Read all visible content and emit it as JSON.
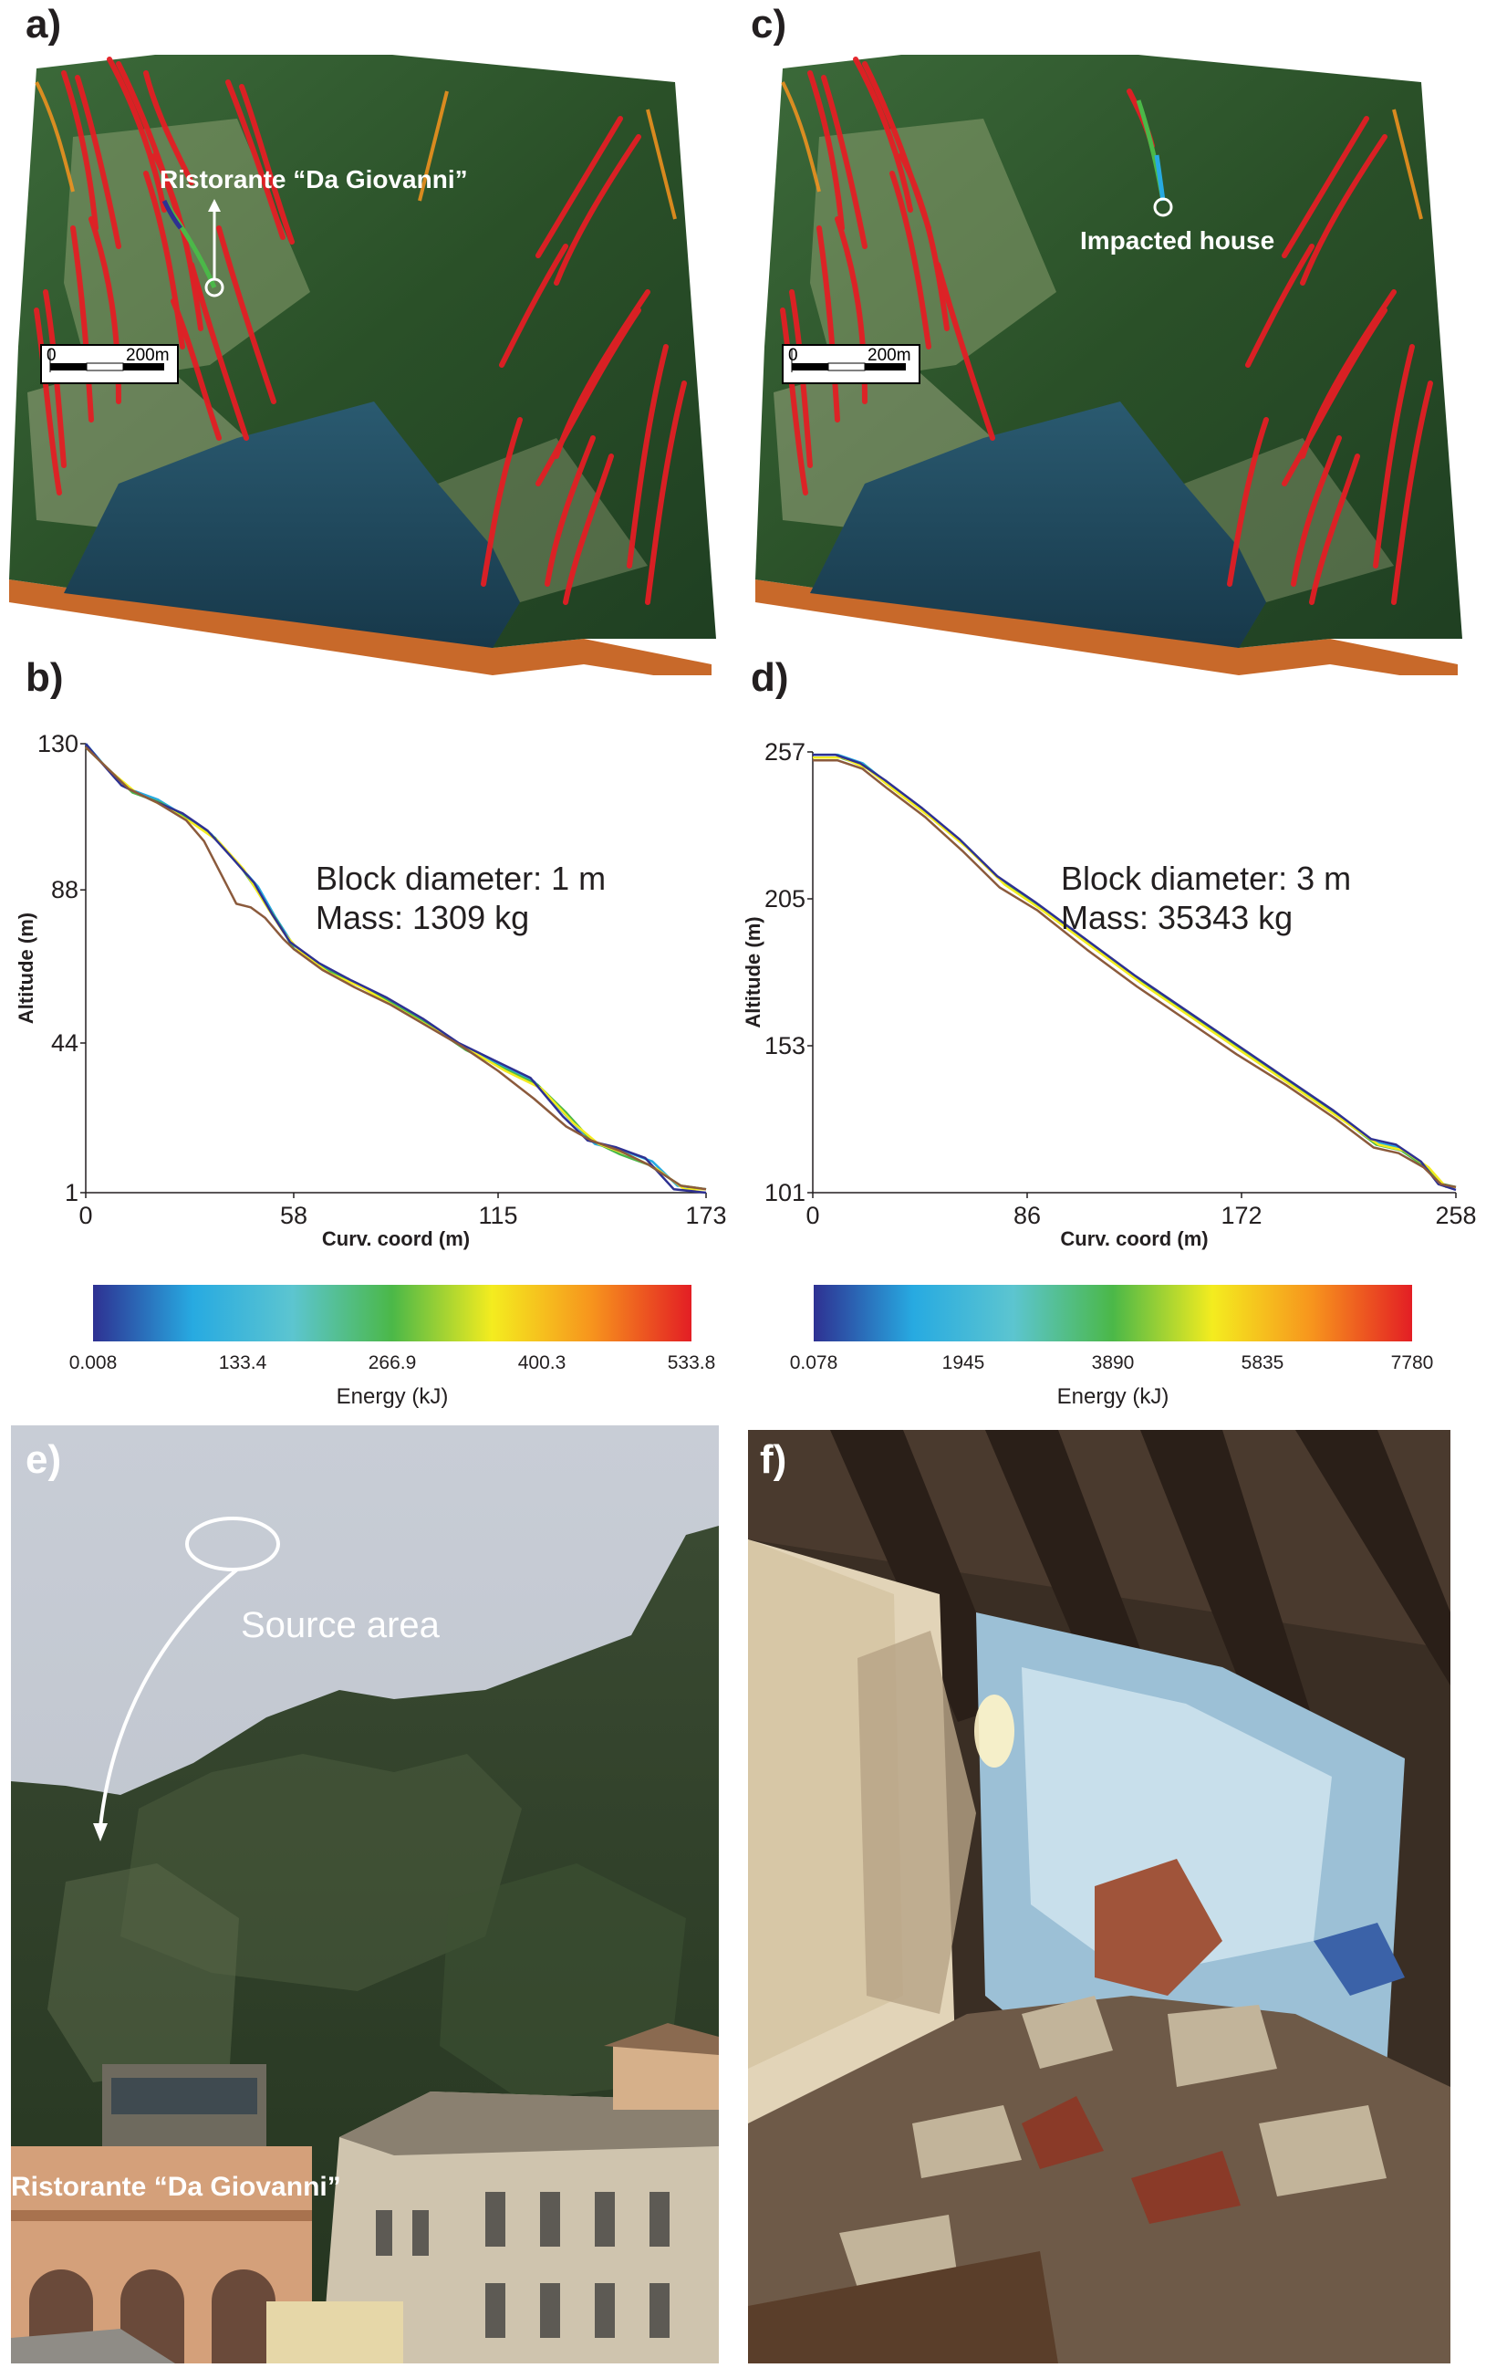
{
  "panels": {
    "a": {
      "letter": "a)",
      "label": "Ristorante “Da Giovanni”",
      "scale": {
        "zero": "0",
        "dist": "200m"
      }
    },
    "c": {
      "letter": "c)",
      "label": "Impacted house",
      "scale": {
        "zero": "0",
        "dist": "200m"
      }
    },
    "b": {
      "letter": "b)",
      "annotation_line1": "Block diameter: 1 m",
      "annotation_line2": "Mass: 1309 kg"
    },
    "d": {
      "letter": "d)",
      "annotation_line1": "Block diameter: 3 m",
      "annotation_line2": "Mass: 35343 kg"
    },
    "e": {
      "letter": "e)",
      "source_label": "Source area",
      "restaurant_label": "Ristorante “Da Giovanni”"
    },
    "f": {
      "letter": "f)"
    }
  },
  "colors": {
    "trajectory_red": "#e31e24",
    "water": "#1f4f66",
    "forest": "#2f5a2a",
    "soil_base": "#c8692a",
    "gradient": [
      "#2e3192",
      "#27aae1",
      "#5cc5d0",
      "#4bb848",
      "#f4ec1f",
      "#f7941d",
      "#e31e24"
    ]
  },
  "chart_data": [
    {
      "id": "b",
      "type": "line",
      "title": "",
      "xlabel": "Curv. coord (m)",
      "ylabel": "Altitude (m)",
      "xlim": [
        0,
        173
      ],
      "ylim": [
        1,
        130
      ],
      "xticks": [
        0,
        58,
        115,
        173
      ],
      "yticks": [
        1,
        44,
        88,
        130
      ],
      "series": [
        {
          "color": "#27aae1",
          "x": [
            0,
            5,
            12,
            20,
            28,
            35,
            42,
            48,
            53,
            58,
            66,
            75,
            85,
            95,
            105,
            115,
            125,
            135,
            142,
            150,
            158,
            165,
            173
          ],
          "y": [
            130,
            124,
            117,
            114,
            109,
            104,
            96,
            89,
            80,
            72,
            66,
            61,
            56,
            50,
            43,
            38,
            33,
            22,
            15,
            13,
            10,
            3,
            2
          ]
        },
        {
          "color": "#4bb848",
          "x": [
            0,
            6,
            13,
            21,
            29,
            36,
            43,
            49,
            54,
            58,
            67,
            76,
            86,
            96,
            106,
            116,
            126,
            134,
            141,
            149,
            157,
            166,
            173
          ],
          "y": [
            129,
            123,
            116,
            113,
            108,
            103,
            95,
            86,
            78,
            71,
            65,
            61,
            55,
            49,
            42,
            37,
            32,
            24,
            16,
            12,
            9,
            3,
            2
          ]
        },
        {
          "color": "#f4ec1f",
          "x": [
            0,
            7,
            14,
            22,
            30,
            37,
            44,
            50,
            55,
            60,
            68,
            77,
            87,
            97,
            107,
            117,
            127,
            136,
            143,
            151,
            159,
            167,
            173
          ],
          "y": [
            129,
            122,
            116,
            112,
            107,
            102,
            94,
            84,
            76,
            70,
            64,
            60,
            54,
            48,
            42,
            36,
            31,
            21,
            15,
            12,
            8,
            2,
            2
          ]
        },
        {
          "color": "#2e3192",
          "x": [
            0,
            4,
            10,
            18,
            27,
            34,
            41,
            47,
            52,
            57,
            65,
            74,
            84,
            94,
            104,
            114,
            124,
            133,
            140,
            148,
            156,
            164,
            173
          ],
          "y": [
            130,
            125,
            118,
            114,
            110,
            105,
            97,
            90,
            81,
            73,
            67,
            62,
            57,
            51,
            44,
            39,
            34,
            23,
            16,
            14,
            11,
            2,
            1
          ]
        },
        {
          "color": "#8b5a3c",
          "x": [
            0,
            6,
            12,
            20,
            28,
            33,
            38,
            42,
            46,
            50,
            55,
            58,
            66,
            75,
            85,
            95,
            105,
            115,
            125,
            134,
            141,
            149,
            157,
            166,
            173
          ],
          "y": [
            129,
            123,
            117,
            113,
            108,
            102,
            92,
            84,
            83,
            80,
            74,
            71,
            65,
            60,
            55,
            49,
            43,
            36,
            28,
            20,
            16,
            13,
            9,
            3,
            2
          ]
        }
      ]
    },
    {
      "id": "d",
      "type": "line",
      "title": "",
      "xlabel": "Curv. coord (m)",
      "ylabel": "Altitude (m)",
      "xlim": [
        0,
        258
      ],
      "ylim": [
        101,
        257
      ],
      "xticks": [
        0,
        86,
        172,
        258
      ],
      "yticks": [
        101,
        153,
        205,
        257
      ],
      "series": [
        {
          "color": "#27aae1",
          "x": [
            0,
            10,
            20,
            30,
            45,
            60,
            75,
            90,
            110,
            130,
            150,
            170,
            190,
            210,
            225,
            235,
            245,
            252,
            258
          ],
          "y": [
            256,
            256,
            253,
            246,
            236,
            225,
            212,
            203,
            190,
            177,
            165,
            153,
            141,
            129,
            119,
            117,
            111,
            104,
            103
          ]
        },
        {
          "color": "#4bb848",
          "x": [
            0,
            11,
            21,
            31,
            46,
            61,
            76,
            91,
            111,
            131,
            151,
            171,
            191,
            211,
            226,
            236,
            246,
            253,
            258
          ],
          "y": [
            255,
            255,
            252,
            245,
            235,
            224,
            211,
            202,
            189,
            176,
            164,
            152,
            140,
            128,
            118,
            116,
            110,
            104,
            103
          ]
        },
        {
          "color": "#f4ec1f",
          "x": [
            0,
            12,
            22,
            32,
            47,
            62,
            77,
            92,
            112,
            132,
            152,
            172,
            192,
            212,
            227,
            237,
            247,
            254,
            258
          ],
          "y": [
            255,
            255,
            251,
            244,
            234,
            223,
            210,
            201,
            188,
            175,
            163,
            151,
            139,
            127,
            118,
            116,
            110,
            103,
            103
          ]
        },
        {
          "color": "#2e3192",
          "x": [
            0,
            9,
            19,
            29,
            44,
            59,
            74,
            89,
            109,
            129,
            149,
            169,
            189,
            209,
            224,
            234,
            244,
            251,
            258
          ],
          "y": [
            256,
            256,
            253,
            247,
            237,
            226,
            213,
            204,
            191,
            178,
            166,
            154,
            142,
            130,
            120,
            118,
            112,
            104,
            102
          ]
        },
        {
          "color": "#8b5a3c",
          "x": [
            0,
            10,
            20,
            30,
            45,
            60,
            75,
            90,
            110,
            130,
            150,
            170,
            190,
            210,
            225,
            235,
            245,
            252,
            258
          ],
          "y": [
            254,
            254,
            251,
            244,
            234,
            222,
            209,
            201,
            187,
            174,
            162,
            150,
            139,
            127,
            117,
            115,
            110,
            104,
            103
          ]
        }
      ]
    },
    {
      "id": "colorbar-b",
      "type": "heatmap",
      "title": "",
      "xlabel": "Energy (kJ)",
      "xticks": [
        "0.008",
        "133.4",
        "266.9",
        "400.3",
        "533.8"
      ],
      "range": [
        0.008,
        533.8
      ]
    },
    {
      "id": "colorbar-d",
      "type": "heatmap",
      "title": "",
      "xlabel": "Energy (kJ)",
      "xticks": [
        "0.078",
        "1945",
        "3890",
        "5835",
        "7780"
      ],
      "range": [
        0.078,
        7780
      ]
    }
  ]
}
